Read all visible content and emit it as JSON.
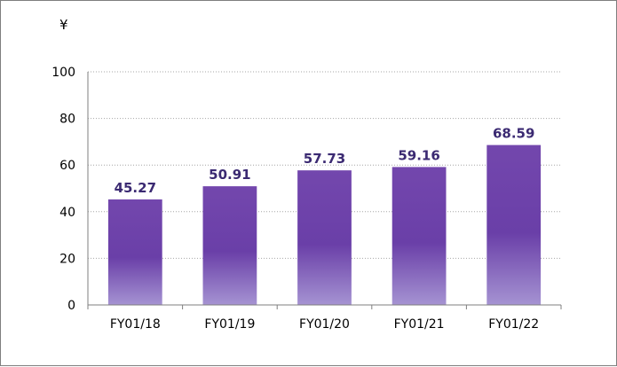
{
  "chart_data": {
    "type": "bar",
    "unit_label": "¥",
    "categories": [
      "FY01/18",
      "FY01/19",
      "FY01/20",
      "FY01/21",
      "FY01/22"
    ],
    "values": [
      45.27,
      50.91,
      57.73,
      59.16,
      68.59
    ],
    "value_labels": [
      "45.27",
      "50.91",
      "57.73",
      "59.16",
      "68.59"
    ],
    "ylim": [
      0,
      100
    ],
    "y_ticks": [
      "0",
      "20",
      "40",
      "60",
      "80",
      "100"
    ],
    "grid": true,
    "legend": "none",
    "colors": {
      "bar_top": "#7347ad",
      "bar_mid": "#6a3fa8",
      "bar_bottom": "#a593d2",
      "label": "#3b2a72",
      "grid": "#a6a6a6",
      "axis": "#7f7f7f"
    }
  }
}
